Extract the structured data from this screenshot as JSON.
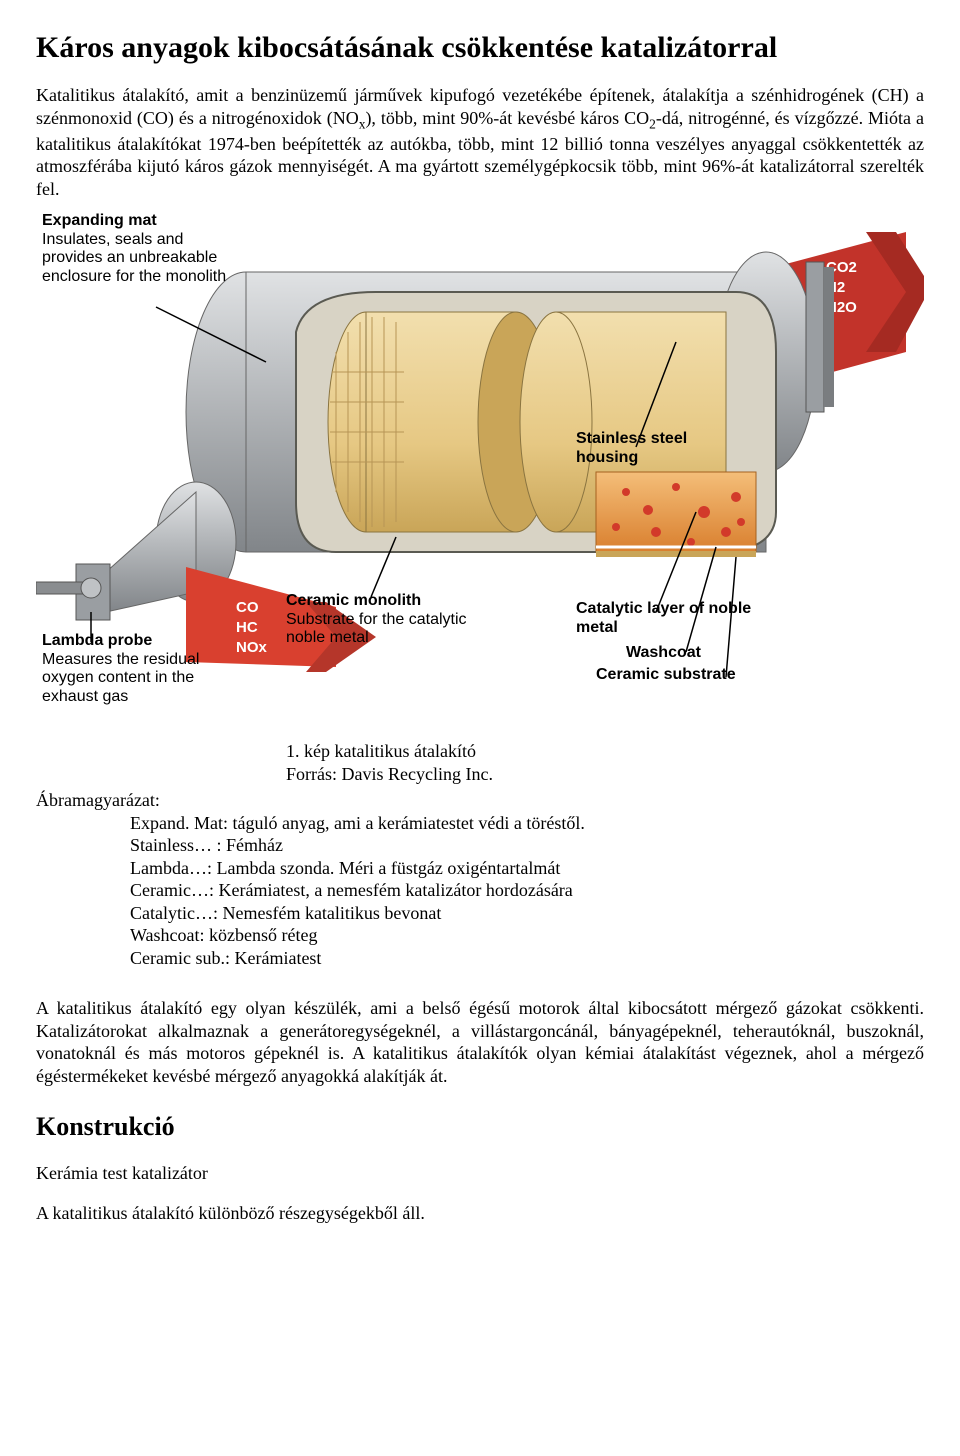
{
  "title": "Káros anyagok kibocsátásának csökkentése katalizátorral",
  "intro_html": "Katalitikus átalakító, amit a benzinüzemű járművek kipufogó vezetékébe építenek, átalakítja a szénhidrogének (CH) a szénmonoxid (CO) és a nitrogénoxidok (NO<span class=\"sub\">x</span>), több, mint 90%-át kevésbé káros CO<span class=\"sub\">2</span>-dá, nitrogénné, és vízgőzzé. Mióta a katalitikus átalakítókat 1974-ben beépítették az autókba, több, mint 12 billió tonna veszélyes anyaggal csökkentették az atmoszférába kijutó káros gázok mennyiségét. A ma gyártott személygépkocsik több, mint 96%-át katalizátorral szerelték fel.",
  "diagram": {
    "labels": {
      "expanding": {
        "title": "Expanding mat",
        "desc": "Insulates, seals and provides an unbreakable enclosure for the monolith"
      },
      "stainless": {
        "title": "Stainless steel housing",
        "desc": ""
      },
      "lambda": {
        "title": "Lambda probe",
        "desc": "Measures the residual oxygen content in the exhaust gas"
      },
      "ceramic": {
        "title": "Ceramic monolith",
        "desc": "Substrate for the catalytic noble metal"
      },
      "catalytic": {
        "title": "Catalytic layer of noble metal"
      },
      "washcoat": {
        "title": "Washcoat"
      },
      "substrate": {
        "title": "Ceramic substrate"
      }
    },
    "arrows": {
      "in": [
        "CO",
        "HC",
        "NOx"
      ],
      "out": [
        "CO2",
        "N2",
        "H2O"
      ]
    },
    "colors": {
      "shell": "#b9bcbf",
      "shell_dark": "#818589",
      "shell_hilite": "#e0e2e4",
      "mat": "#d8d3c5",
      "monolith": "#e6c883",
      "monolith_shade": "#c9a558",
      "cat_layer": "#e9a04a",
      "cat_specks": "#d23a2a",
      "arrow_in": "#d9402f",
      "arrow_out": "#c2332a",
      "leader": "#000000"
    }
  },
  "caption_line1": "1. kép katalitikus átalakító",
  "caption_line2": "Forrás: Davis Recycling Inc.",
  "legend_header": "Ábramagyarázat:",
  "legend": {
    "l1": "Expand. Mat: táguló anyag, ami a kerámiatestet védi a töréstől.",
    "l2": "Stainless… : Fémház",
    "l3": "Lambda…: Lambda szonda. Méri a füstgáz oxigéntartalmát",
    "l4": "Ceramic…: Kerámiatest, a nemesfém katalizátor hordozására",
    "l5": "Catalytic…: Nemesfém katalitikus bevonat",
    "l6": "Washcoat: közbenső réteg",
    "l7": "Ceramic sub.: Kerámiatest"
  },
  "para2": "A katalitikus átalakító egy olyan készülék, ami a belső égésű motorok által kibocsátott mérgező gázokat csökkenti. Katalizátorokat alkalmaznak a generátoregységeknél, a villástargoncánál, bányagépeknél, teherautóknál, buszoknál, vonatoknál és más motoros gépeknél is. A katalitikus átalakítók olyan kémiai átalakítást végeznek, ahol a mérgező égéstermékeket kevésbé mérgező anyagokká alakítják át.",
  "h2": "Konstrukció",
  "sub1": "Kerámia test katalizátor",
  "para3": "A katalitikus átalakító különböző részegységekből áll."
}
